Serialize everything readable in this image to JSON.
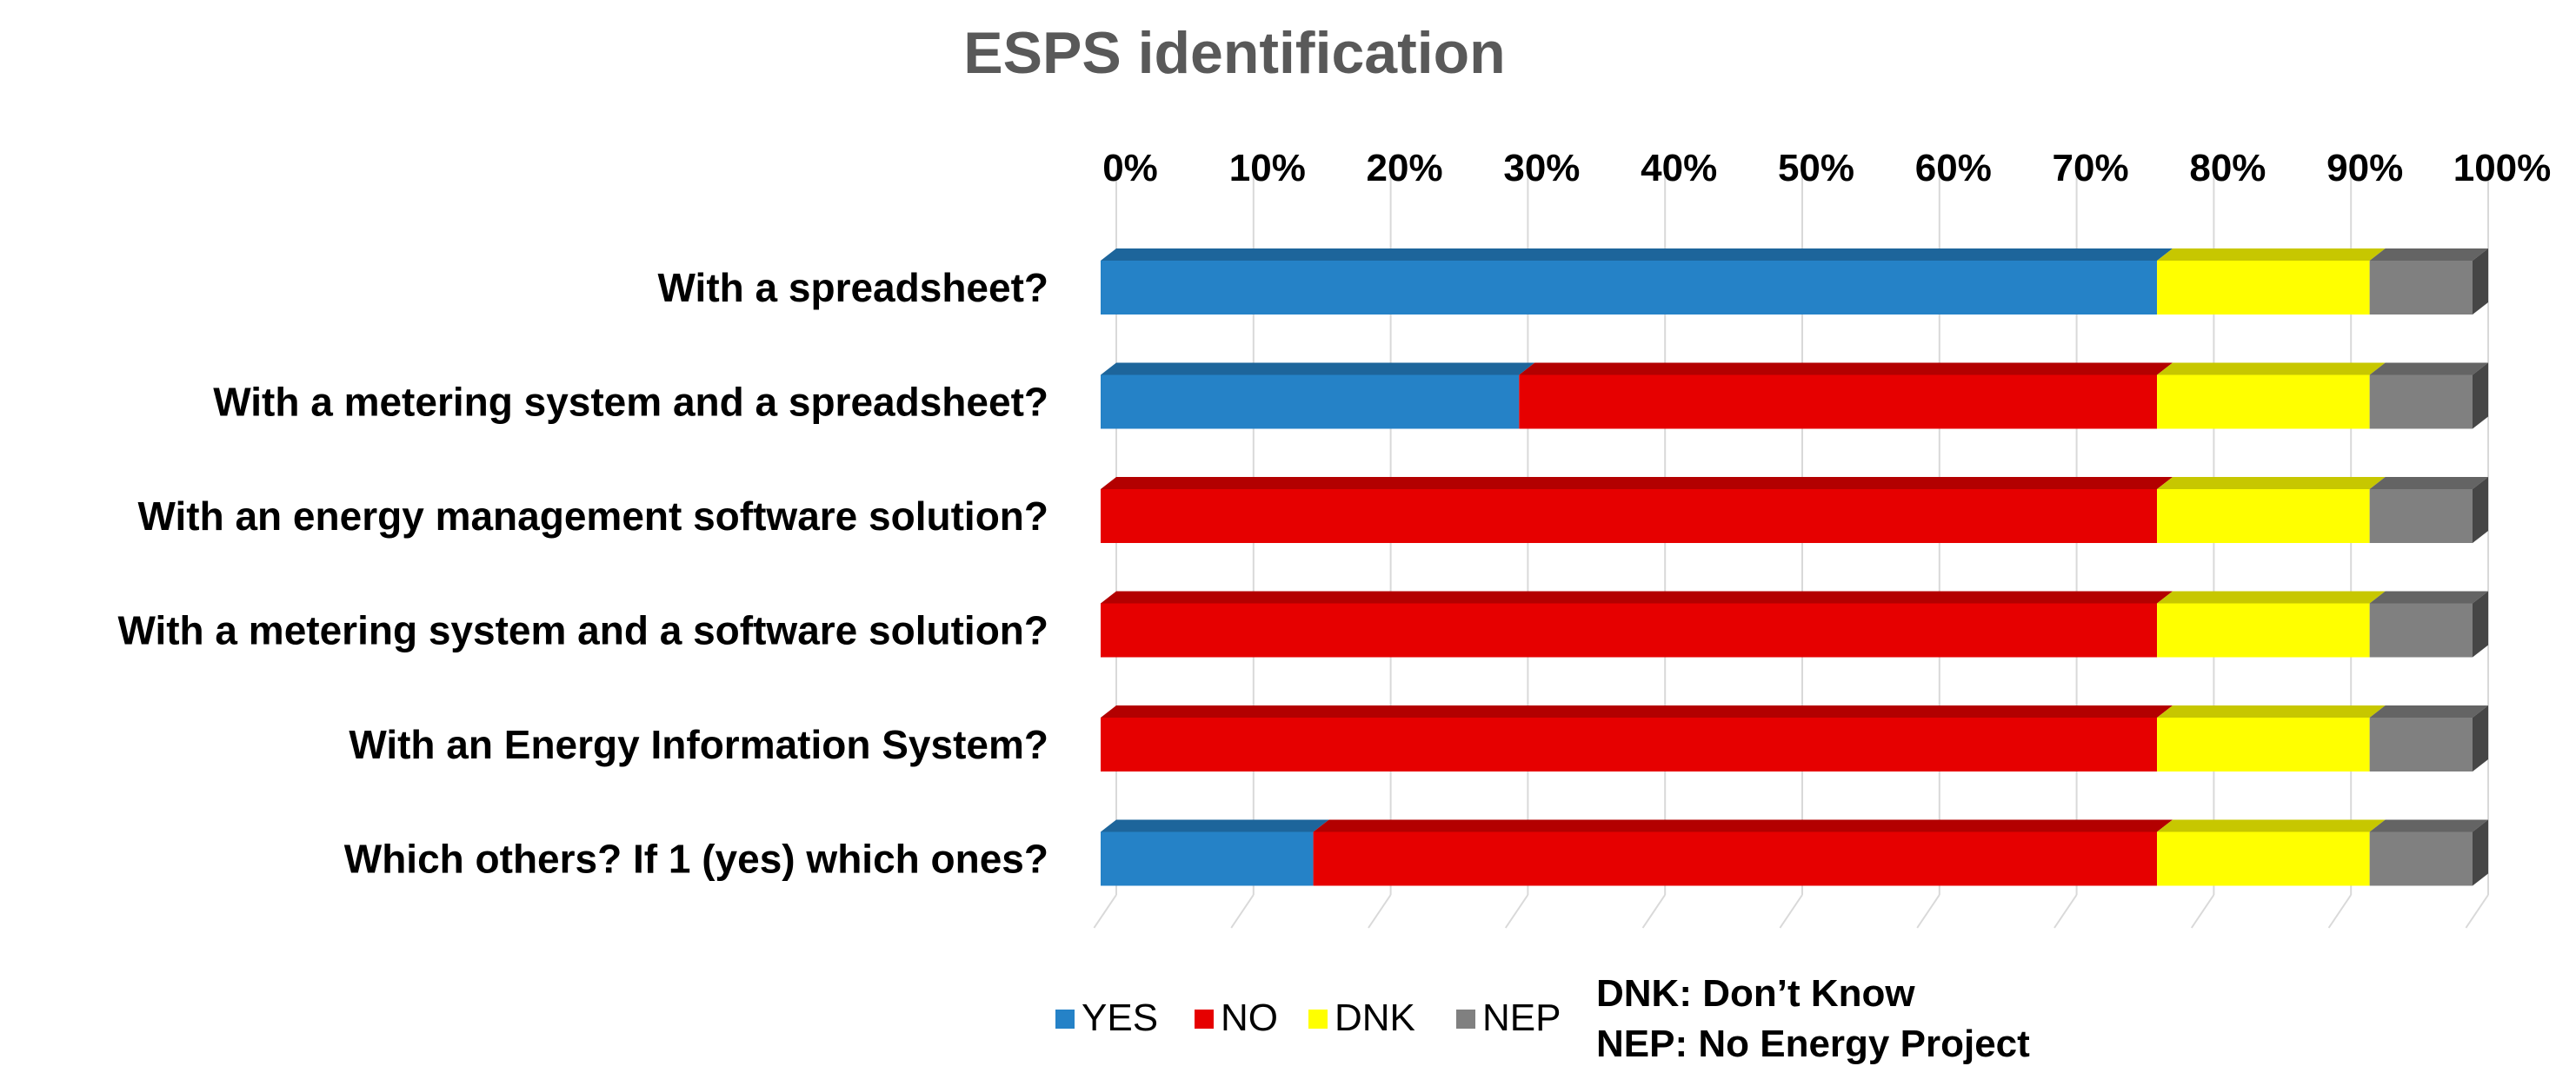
{
  "chart_data": {
    "type": "bar",
    "orientation": "horizontal",
    "stacked": true,
    "title": "ESPS identification",
    "xlim": [
      0,
      100
    ],
    "x_ticks": [
      "0%",
      "10%",
      "20%",
      "30%",
      "40%",
      "50%",
      "60%",
      "70%",
      "80%",
      "90%",
      "100%"
    ],
    "categories": [
      "With a spreadsheet?",
      "With a metering system and a spreadsheet?",
      "With an energy management software solution?",
      "With a metering system and a software solution?",
      "With an Energy Information System?",
      "Which others? If 1 (yes) which ones?"
    ],
    "series": [
      {
        "name": "YES",
        "color": "#2582c7",
        "values": [
          77,
          30.5,
          0,
          0,
          0,
          15.5
        ]
      },
      {
        "name": "NO",
        "color": "#e60000",
        "values": [
          0,
          46.5,
          77,
          77,
          77,
          61.5
        ]
      },
      {
        "name": "DNK",
        "color": "#ffff00",
        "values": [
          15.5,
          15.5,
          15.5,
          15.5,
          15.5,
          15.5
        ]
      },
      {
        "name": "NEP",
        "color": "#808080",
        "values": [
          7.5,
          7.5,
          7.5,
          7.5,
          7.5,
          7.5
        ]
      }
    ],
    "grid": true,
    "legend_position": "bottom",
    "notes": [
      "DNK: Don’t Know",
      "NEP: No Energy Project"
    ]
  }
}
